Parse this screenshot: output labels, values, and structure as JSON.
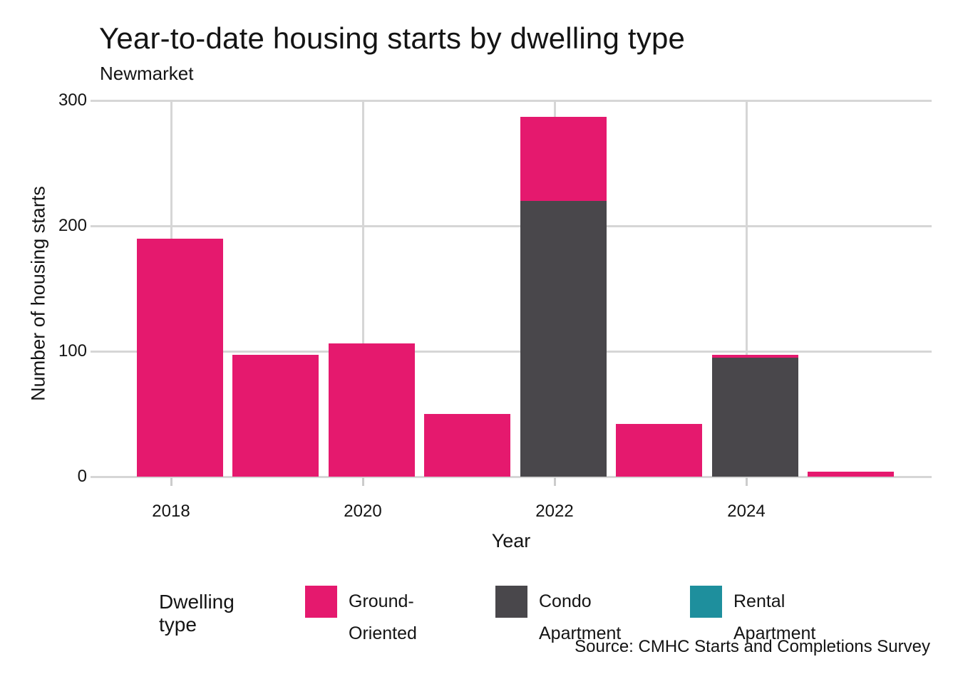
{
  "title": "Year-to-date housing starts by dwelling type",
  "subtitle": "Newmarket",
  "source": "Source: CMHC Starts and Completions Survey",
  "colors": {
    "ground_oriented": "#E5196E",
    "condo_apartment": "#49474B",
    "rental_apartment": "#1E8F9D",
    "gridline": "#d6d6d6"
  },
  "legend": {
    "title": "Dwelling type",
    "items": [
      {
        "label": "Ground-Oriented",
        "color": "#E5196E"
      },
      {
        "label": "Condo Apartment",
        "color": "#49474B"
      },
      {
        "label": "Rental Apartment",
        "color": "#1E8F9D"
      }
    ]
  },
  "chart_data": {
    "type": "bar",
    "stacked": true,
    "title": "Year-to-date housing starts by dwelling type",
    "subtitle": "Newmarket",
    "xlabel": "Year",
    "ylabel": "Number of housing starts",
    "categories": [
      2018,
      2019,
      2020,
      2021,
      2022,
      2023,
      2024,
      2025
    ],
    "series": [
      {
        "name": "Ground-Oriented",
        "color": "#E5196E",
        "values": [
          190,
          97,
          106,
          50,
          67,
          42,
          2,
          4
        ]
      },
      {
        "name": "Condo Apartment",
        "color": "#49474B",
        "values": [
          0,
          0,
          0,
          0,
          220,
          0,
          95,
          0
        ]
      },
      {
        "name": "Rental Apartment",
        "color": "#1E8F9D",
        "values": [
          0,
          0,
          0,
          0,
          0,
          0,
          0,
          0
        ]
      }
    ],
    "totals": [
      190,
      97,
      106,
      50,
      287,
      42,
      97,
      4
    ],
    "ylim": [
      0,
      300
    ],
    "y_ticks": [
      0,
      100,
      200,
      300
    ],
    "x_ticks_at": [
      2018,
      2020,
      2022,
      2024
    ],
    "grid": true,
    "legend_position": "bottom",
    "stack_order_bottom_to_top": [
      "Rental Apartment",
      "Condo Apartment",
      "Ground-Oriented"
    ]
  }
}
